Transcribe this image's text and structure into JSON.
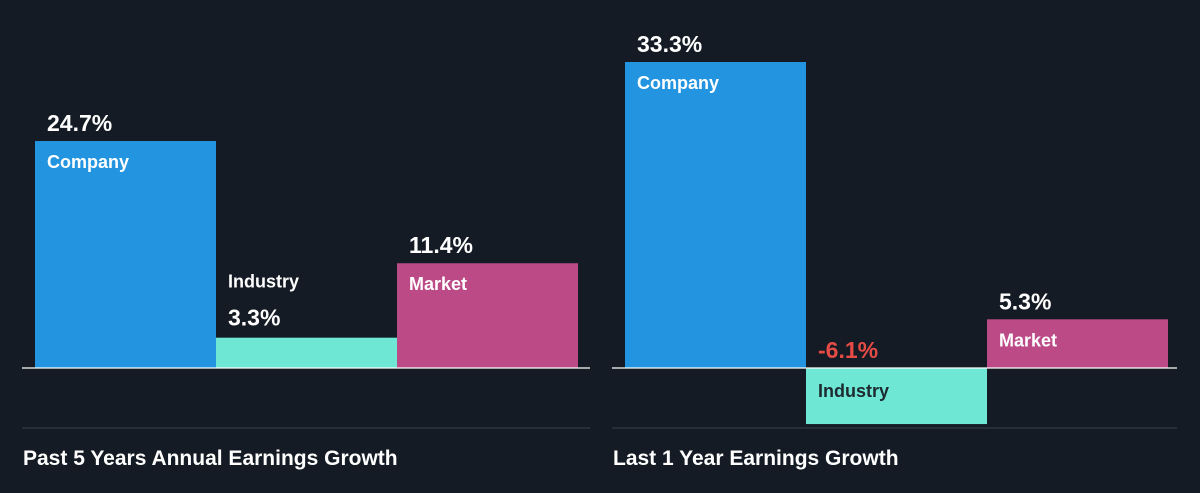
{
  "colors": {
    "background": "#151b24",
    "company": "#2394df",
    "industry": "#6ee7d4",
    "market": "#bb4a86",
    "negative_value": "#e64b45",
    "baseline": "#ffffff",
    "divider": "#3a414c"
  },
  "chart_data": [
    {
      "type": "bar",
      "title": "Past 5 Years Annual Earnings Growth",
      "categories": [
        "Company",
        "Industry",
        "Market"
      ],
      "values": [
        24.7,
        3.3,
        11.4
      ],
      "value_labels": [
        "24.7%",
        "3.3%",
        "11.4%"
      ],
      "ylim": [
        0,
        33.3
      ],
      "grid": false,
      "legend": "none"
    },
    {
      "type": "bar",
      "title": "Last 1 Year Earnings Growth",
      "categories": [
        "Company",
        "Industry",
        "Market"
      ],
      "values": [
        33.3,
        -6.1,
        5.3
      ],
      "value_labels": [
        "33.3%",
        "-6.1%",
        "5.3%"
      ],
      "ylim": [
        -6.1,
        33.3
      ],
      "grid": false,
      "legend": "none"
    }
  ]
}
